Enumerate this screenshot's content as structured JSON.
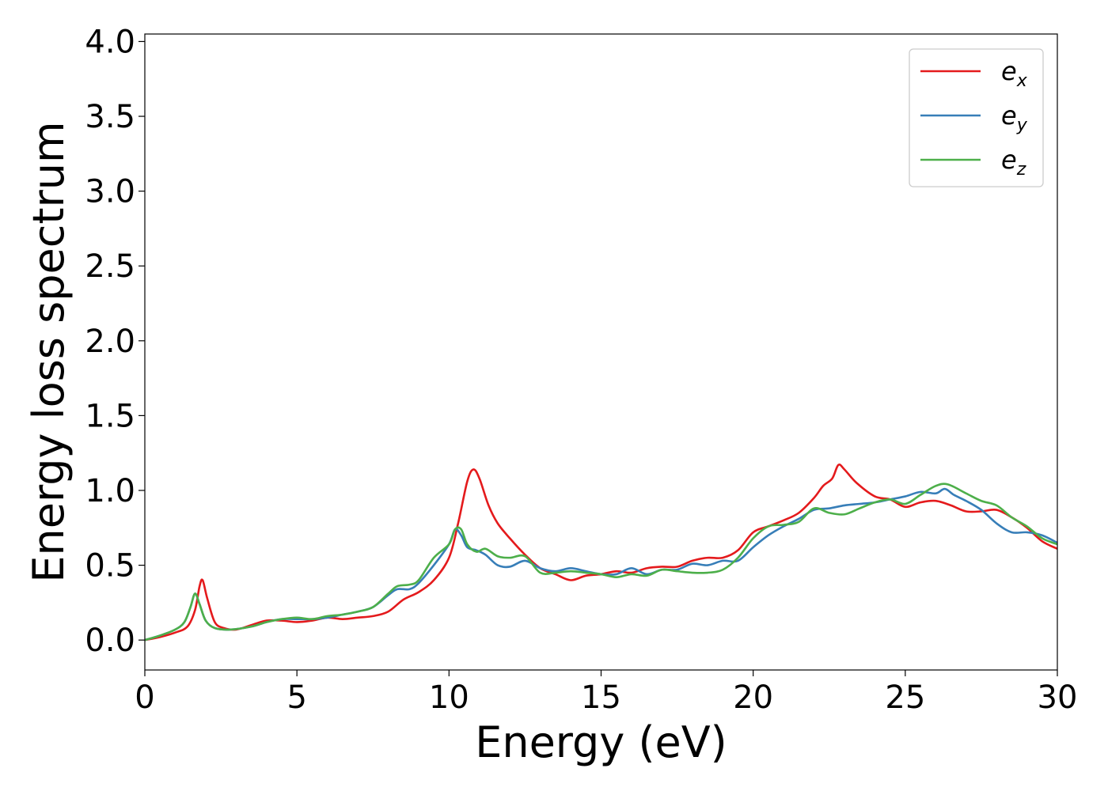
{
  "chart_data": {
    "type": "line",
    "title": "",
    "xlabel": "Energy (eV)",
    "ylabel": "Energy loss spectrum",
    "xlim": [
      0,
      30
    ],
    "ylim": [
      -0.2,
      4.05
    ],
    "xticks": [
      0,
      5,
      10,
      15,
      20,
      25,
      30
    ],
    "xtick_labels": [
      "0",
      "5",
      "10",
      "15",
      "20",
      "25",
      "30"
    ],
    "yticks": [
      0.0,
      0.5,
      1.0,
      1.5,
      2.0,
      2.5,
      3.0,
      3.5,
      4.0
    ],
    "ytick_labels": [
      "0.0",
      "0.5",
      "1.0",
      "1.5",
      "2.0",
      "2.5",
      "3.0",
      "3.5",
      "4.0"
    ],
    "grid": false,
    "legend_position": "top-right",
    "series": [
      {
        "name": "e",
        "subscript": "x",
        "color": "#e41a1c",
        "points": [
          [
            0,
            0
          ],
          [
            0.5,
            0.02
          ],
          [
            1,
            0.05
          ],
          [
            1.4,
            0.09
          ],
          [
            1.65,
            0.2
          ],
          [
            1.8,
            0.36
          ],
          [
            1.9,
            0.4
          ],
          [
            2.05,
            0.28
          ],
          [
            2.3,
            0.12
          ],
          [
            2.6,
            0.08
          ],
          [
            3,
            0.07
          ],
          [
            3.5,
            0.1
          ],
          [
            4,
            0.13
          ],
          [
            4.5,
            0.13
          ],
          [
            5,
            0.12
          ],
          [
            5.5,
            0.13
          ],
          [
            6,
            0.15
          ],
          [
            6.5,
            0.14
          ],
          [
            7,
            0.15
          ],
          [
            7.5,
            0.16
          ],
          [
            8,
            0.19
          ],
          [
            8.5,
            0.27
          ],
          [
            9,
            0.32
          ],
          [
            9.5,
            0.4
          ],
          [
            10,
            0.55
          ],
          [
            10.3,
            0.78
          ],
          [
            10.6,
            1.06
          ],
          [
            10.8,
            1.14
          ],
          [
            11,
            1.08
          ],
          [
            11.3,
            0.9
          ],
          [
            11.6,
            0.78
          ],
          [
            12,
            0.68
          ],
          [
            12.5,
            0.57
          ],
          [
            13,
            0.48
          ],
          [
            13.5,
            0.44
          ],
          [
            14,
            0.4
          ],
          [
            14.5,
            0.43
          ],
          [
            15,
            0.44
          ],
          [
            15.5,
            0.46
          ],
          [
            16,
            0.45
          ],
          [
            16.5,
            0.48
          ],
          [
            17,
            0.49
          ],
          [
            17.5,
            0.49
          ],
          [
            18,
            0.53
          ],
          [
            18.5,
            0.55
          ],
          [
            19,
            0.55
          ],
          [
            19.5,
            0.6
          ],
          [
            20,
            0.72
          ],
          [
            20.5,
            0.76
          ],
          [
            21,
            0.8
          ],
          [
            21.5,
            0.85
          ],
          [
            22,
            0.95
          ],
          [
            22.3,
            1.03
          ],
          [
            22.6,
            1.08
          ],
          [
            22.8,
            1.17
          ],
          [
            23,
            1.14
          ],
          [
            23.4,
            1.05
          ],
          [
            24,
            0.96
          ],
          [
            24.5,
            0.94
          ],
          [
            25,
            0.89
          ],
          [
            25.5,
            0.92
          ],
          [
            26,
            0.93
          ],
          [
            26.5,
            0.9
          ],
          [
            27,
            0.86
          ],
          [
            27.5,
            0.86
          ],
          [
            28,
            0.87
          ],
          [
            28.5,
            0.82
          ],
          [
            29,
            0.75
          ],
          [
            29.5,
            0.66
          ],
          [
            30,
            0.61
          ]
        ]
      },
      {
        "name": "e",
        "subscript": "y",
        "color": "#377eb8",
        "points": [
          [
            0,
            0
          ],
          [
            0.5,
            0.03
          ],
          [
            1,
            0.07
          ],
          [
            1.3,
            0.12
          ],
          [
            1.5,
            0.22
          ],
          [
            1.65,
            0.31
          ],
          [
            1.8,
            0.24
          ],
          [
            2,
            0.13
          ],
          [
            2.3,
            0.08
          ],
          [
            2.8,
            0.07
          ],
          [
            3.5,
            0.09
          ],
          [
            4,
            0.12
          ],
          [
            4.5,
            0.14
          ],
          [
            5,
            0.14
          ],
          [
            5.5,
            0.14
          ],
          [
            6,
            0.15
          ],
          [
            6.5,
            0.17
          ],
          [
            7,
            0.19
          ],
          [
            7.5,
            0.22
          ],
          [
            8,
            0.3
          ],
          [
            8.3,
            0.34
          ],
          [
            8.7,
            0.34
          ],
          [
            9,
            0.38
          ],
          [
            9.5,
            0.5
          ],
          [
            10,
            0.64
          ],
          [
            10.2,
            0.74
          ],
          [
            10.4,
            0.7
          ],
          [
            10.6,
            0.62
          ],
          [
            10.9,
            0.6
          ],
          [
            11.2,
            0.57
          ],
          [
            11.6,
            0.5
          ],
          [
            12,
            0.49
          ],
          [
            12.5,
            0.53
          ],
          [
            13,
            0.48
          ],
          [
            13.5,
            0.46
          ],
          [
            14,
            0.48
          ],
          [
            14.5,
            0.46
          ],
          [
            15,
            0.44
          ],
          [
            15.5,
            0.44
          ],
          [
            16,
            0.48
          ],
          [
            16.5,
            0.44
          ],
          [
            17,
            0.47
          ],
          [
            17.5,
            0.47
          ],
          [
            18,
            0.51
          ],
          [
            18.5,
            0.5
          ],
          [
            19,
            0.53
          ],
          [
            19.5,
            0.53
          ],
          [
            20,
            0.62
          ],
          [
            20.5,
            0.7
          ],
          [
            21,
            0.76
          ],
          [
            21.5,
            0.81
          ],
          [
            22,
            0.87
          ],
          [
            22.5,
            0.88
          ],
          [
            23,
            0.9
          ],
          [
            23.5,
            0.91
          ],
          [
            24,
            0.92
          ],
          [
            24.5,
            0.94
          ],
          [
            25,
            0.96
          ],
          [
            25.5,
            0.99
          ],
          [
            26,
            0.98
          ],
          [
            26.3,
            1.01
          ],
          [
            26.6,
            0.97
          ],
          [
            27,
            0.93
          ],
          [
            27.5,
            0.87
          ],
          [
            28,
            0.78
          ],
          [
            28.5,
            0.72
          ],
          [
            29,
            0.72
          ],
          [
            29.5,
            0.7
          ],
          [
            30,
            0.65
          ]
        ]
      },
      {
        "name": "e",
        "subscript": "z",
        "color": "#4daf4a",
        "points": [
          [
            0,
            0
          ],
          [
            0.5,
            0.03
          ],
          [
            1,
            0.07
          ],
          [
            1.3,
            0.12
          ],
          [
            1.5,
            0.22
          ],
          [
            1.65,
            0.31
          ],
          [
            1.8,
            0.24
          ],
          [
            2,
            0.13
          ],
          [
            2.3,
            0.08
          ],
          [
            2.8,
            0.07
          ],
          [
            3.5,
            0.09
          ],
          [
            4,
            0.12
          ],
          [
            4.5,
            0.14
          ],
          [
            5,
            0.15
          ],
          [
            5.5,
            0.14
          ],
          [
            6,
            0.16
          ],
          [
            6.5,
            0.17
          ],
          [
            7,
            0.19
          ],
          [
            7.5,
            0.22
          ],
          [
            8,
            0.31
          ],
          [
            8.3,
            0.36
          ],
          [
            8.7,
            0.37
          ],
          [
            9,
            0.4
          ],
          [
            9.5,
            0.55
          ],
          [
            10,
            0.64
          ],
          [
            10.2,
            0.74
          ],
          [
            10.4,
            0.74
          ],
          [
            10.6,
            0.64
          ],
          [
            10.9,
            0.59
          ],
          [
            11.2,
            0.61
          ],
          [
            11.6,
            0.56
          ],
          [
            12,
            0.55
          ],
          [
            12.5,
            0.56
          ],
          [
            13,
            0.45
          ],
          [
            13.5,
            0.45
          ],
          [
            14,
            0.46
          ],
          [
            14.5,
            0.45
          ],
          [
            15,
            0.44
          ],
          [
            15.5,
            0.42
          ],
          [
            16,
            0.44
          ],
          [
            16.5,
            0.43
          ],
          [
            17,
            0.47
          ],
          [
            17.5,
            0.46
          ],
          [
            18,
            0.45
          ],
          [
            18.5,
            0.45
          ],
          [
            19,
            0.47
          ],
          [
            19.5,
            0.55
          ],
          [
            20,
            0.68
          ],
          [
            20.5,
            0.76
          ],
          [
            21,
            0.77
          ],
          [
            21.5,
            0.79
          ],
          [
            22,
            0.88
          ],
          [
            22.5,
            0.85
          ],
          [
            23,
            0.84
          ],
          [
            23.5,
            0.88
          ],
          [
            24,
            0.92
          ],
          [
            24.5,
            0.94
          ],
          [
            25,
            0.91
          ],
          [
            25.5,
            0.97
          ],
          [
            26,
            1.03
          ],
          [
            26.4,
            1.04
          ],
          [
            27,
            0.98
          ],
          [
            27.5,
            0.93
          ],
          [
            28,
            0.9
          ],
          [
            28.5,
            0.82
          ],
          [
            29,
            0.76
          ],
          [
            29.5,
            0.68
          ],
          [
            30,
            0.64
          ]
        ]
      }
    ]
  }
}
